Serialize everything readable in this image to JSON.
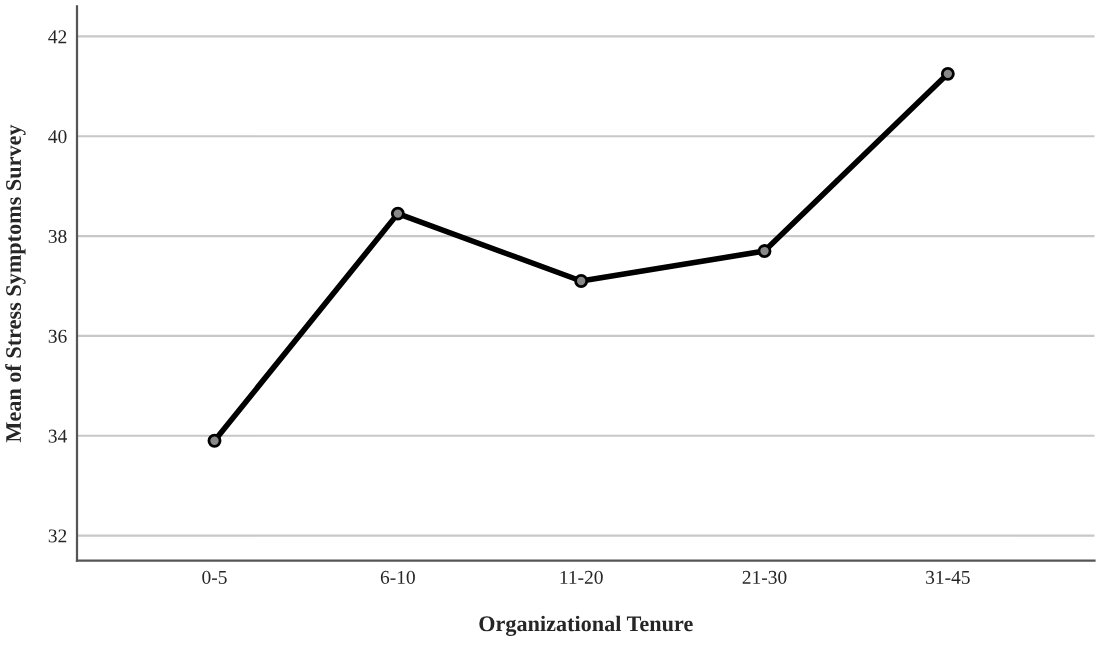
{
  "chart_data": {
    "type": "line",
    "xlabel": "Organizational Tenure",
    "ylabel": "Mean of Stress Symptoms Survey",
    "categories": [
      "0-5",
      "6-10",
      "11-20",
      "21-30",
      "31-45"
    ],
    "series": [
      {
        "color": "#000000",
        "values": [
          33.9,
          38.45,
          37.1,
          37.7,
          41.25
        ]
      }
    ],
    "ylim": [
      31.5,
      42.6
    ],
    "yticks": [
      32,
      34,
      36,
      38,
      40,
      42
    ],
    "grid": "y",
    "marker": "circle",
    "line_style": "solid",
    "legend": false
  }
}
